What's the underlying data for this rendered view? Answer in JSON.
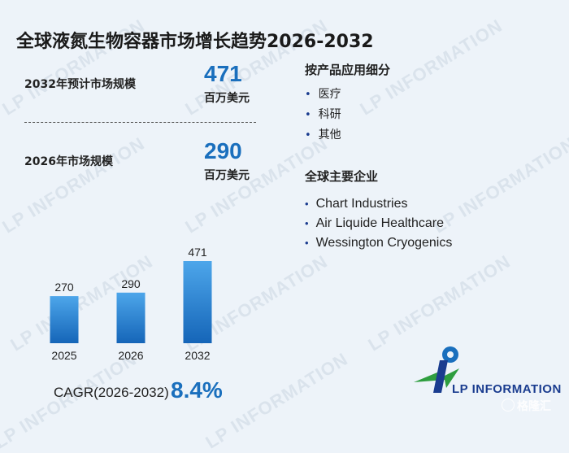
{
  "title": "全球液氮生物容器市场增长趋势2026-2032",
  "stats": [
    {
      "label": "2032年预计市场规模",
      "value": "471",
      "unit": "百万美元"
    },
    {
      "label": "2026年市场规模",
      "value": "290",
      "unit": "百万美元"
    }
  ],
  "segments": {
    "heading": "按产品应用细分",
    "items": [
      "医疗",
      "科研",
      "其他"
    ]
  },
  "companies": {
    "heading": "全球主要企业",
    "items": [
      "Chart Industries",
      "Air Liquide Healthcare",
      "Wessington Cryogenics"
    ]
  },
  "chart_data": {
    "type": "bar",
    "categories": [
      "2025",
      "2026",
      "2032"
    ],
    "values": [
      270,
      290,
      471
    ],
    "ylim": [
      0,
      500
    ],
    "color_top": "#4da6ea",
    "color_bottom": "#1565b8"
  },
  "cagr": {
    "label": "CAGR(2026-2032)",
    "value": "8.4%"
  },
  "watermark": "LP INFORMATION",
  "logo": {
    "text": "LP INFORMATION"
  },
  "source": "格隆汇",
  "colors": {
    "accent": "#1a6fbd",
    "bullet": "#1a3c8f"
  }
}
